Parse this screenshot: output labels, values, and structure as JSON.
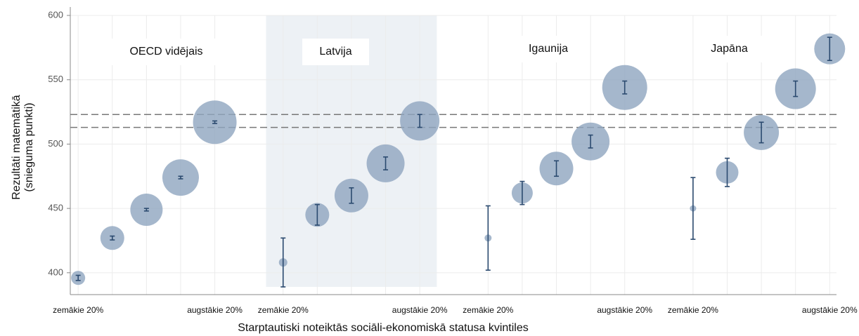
{
  "chart_data": {
    "type": "bubble",
    "ylabel": [
      "Rezultāti matemātikā",
      "(snieguma punkti)"
    ],
    "xlabel": "Starptautiski noteiktās sociāli-ekonomiskā statusa kvintiles",
    "xlim": [
      0.77,
      23.2
    ],
    "ylim": [
      383,
      600
    ],
    "yticks": [
      400,
      450,
      500,
      550,
      600
    ],
    "xticks": [
      {
        "value": 1,
        "label": "zemākie 20%"
      },
      {
        "value": 5,
        "label": "augstākie 20%"
      },
      {
        "value": 7,
        "label": "zemākie 20%"
      },
      {
        "value": 11,
        "label": "augstākie 20%"
      },
      {
        "value": 13,
        "label": "zemākie 20%"
      },
      {
        "value": 17,
        "label": "augstākie 20%"
      },
      {
        "value": 19,
        "label": "zemākie 20%"
      },
      {
        "value": 23,
        "label": "augstākie 20%"
      }
    ],
    "grid": true,
    "reference_lines": [
      523,
      513
    ],
    "highlight": {
      "x": [
        6.5,
        11.5
      ],
      "y": [
        389,
        600
      ]
    },
    "bubble_color": "#8ea5bf",
    "error_color": "#2b4a6f",
    "series": [
      {
        "name": "OECD vidējais",
        "x": [
          1,
          2,
          3,
          4,
          5
        ],
        "values": [
          396,
          427,
          449,
          474,
          517
        ],
        "errors": [
          2,
          1.5,
          1,
          1,
          1
        ],
        "sizes": [
          10,
          17,
          23,
          26,
          31
        ]
      },
      {
        "name": "Latvija",
        "x": [
          7,
          8,
          9,
          10,
          11
        ],
        "values": [
          408,
          445,
          460,
          485,
          518
        ],
        "errors": [
          19,
          8,
          6,
          5,
          5
        ],
        "sizes": [
          6,
          17,
          24,
          27,
          28
        ]
      },
      {
        "name": "Igaunija",
        "x": [
          13,
          14,
          15,
          16,
          17
        ],
        "values": [
          427,
          462,
          481,
          502,
          544
        ],
        "errors": [
          25,
          9,
          6,
          5,
          5
        ],
        "sizes": [
          5,
          15,
          24,
          27,
          32
        ]
      },
      {
        "name": "Japāna",
        "x": [
          19,
          20,
          21,
          22,
          23
        ],
        "values": [
          450,
          478,
          509,
          543,
          574
        ],
        "errors": [
          24,
          11,
          8,
          6,
          9
        ],
        "sizes": [
          4.5,
          16,
          25,
          29,
          22
        ]
      }
    ]
  }
}
